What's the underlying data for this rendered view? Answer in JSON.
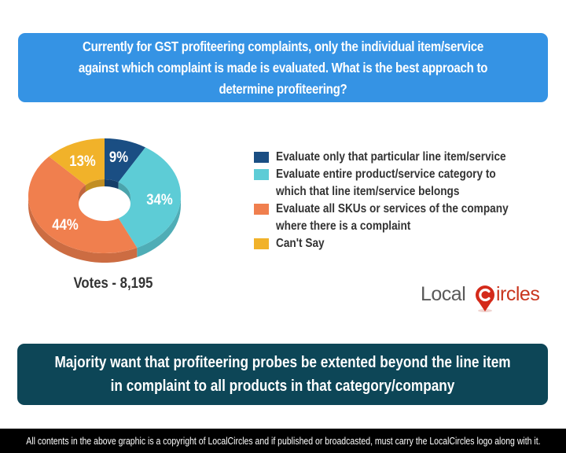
{
  "question": {
    "text": "Currently for GST profiteering complaints, only the individual item/service against which complaint is made is evaluated. What is the best approach to determine profiteering?"
  },
  "chart_data": {
    "type": "pie",
    "style": "3d-donut",
    "title": "Currently for GST profiteering complaints, only the individual item/service against which complaint is made is evaluated. What is the best approach to determine profiteering?",
    "categories": [
      "Evaluate only that particular line item/service",
      "Evaluate entire product/service category to which that line item/service belongs",
      "Evaluate all SKUs or services of the company where there is a complaint",
      "Can't Say"
    ],
    "values": [
      9,
      34,
      44,
      13
    ],
    "labels": [
      "9%",
      "34%",
      "44%",
      "13%"
    ],
    "colors": [
      "#1a4e83",
      "#5dccd6",
      "#f07f4e",
      "#f1b22a"
    ],
    "legend_position": "right",
    "total_votes": "8,195"
  },
  "legend": {
    "items": [
      {
        "label": "Evaluate only that particular line item/service",
        "color": "#1a4e83"
      },
      {
        "label": "Evaluate entire product/service category to which that line item/service belongs",
        "color": "#5dccd6"
      },
      {
        "label": "Evaluate all SKUs or services of the company where there is a complaint",
        "color": "#f07f4e"
      },
      {
        "label": "Can't Say",
        "color": "#f1b22a"
      }
    ]
  },
  "votes": {
    "label": "Votes - 8,195"
  },
  "logo": {
    "part1": "Local",
    "part2": "ircles",
    "pin_letter": "C"
  },
  "summary": {
    "text": "Majority want that profiteering probes be extented beyond the line item in complaint to all products in that category/company"
  },
  "footer": {
    "text": "All contents in the above graphic is a copyright of LocalCircles and if published or broadcasted, must carry the LocalCircles logo along with it."
  },
  "colors": {
    "header_bg": "#3593e4",
    "summary_bg": "#0d4657",
    "footer_bg": "#000000"
  }
}
